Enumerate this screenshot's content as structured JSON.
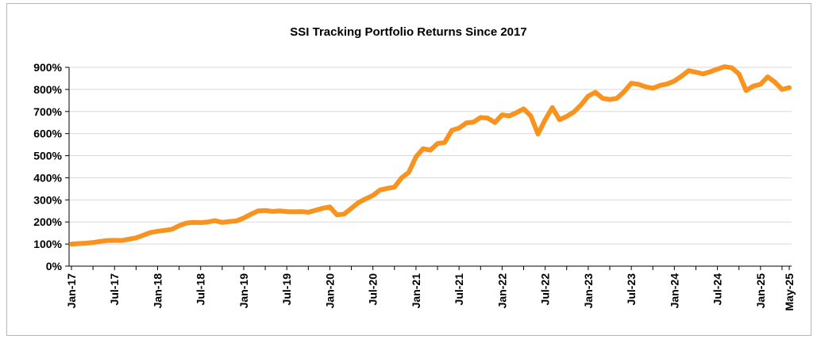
{
  "chart_data": {
    "type": "line",
    "title": "SSI Tracking Portfolio Returns Since 2017",
    "xlabel": "",
    "ylabel": "",
    "ylim": [
      0,
      900
    ],
    "y_ticks": [
      "0%",
      "100%",
      "200%",
      "300%",
      "400%",
      "500%",
      "600%",
      "700%",
      "800%",
      "900%"
    ],
    "x_tick_labels": [
      "Jan-17",
      "Jul-17",
      "Jan-18",
      "Jul-18",
      "Jan-19",
      "Jul-19",
      "Jan-20",
      "Jul-20",
      "Jan-21",
      "Jul-21",
      "Jan-22",
      "Jul-22",
      "Jan-23",
      "Jul-23",
      "Jan-24",
      "Jul-24",
      "Jan-25",
      "May-25"
    ],
    "grid": true,
    "line_color": "#F7931E",
    "series": [
      {
        "name": "SSI Tracking Portfolio",
        "x_start": "Jan-17",
        "frequency": "monthly",
        "values": [
          100,
          102,
          104,
          107,
          112,
          116,
          117,
          116,
          122,
          128,
          140,
          152,
          158,
          162,
          167,
          183,
          195,
          198,
          197,
          200,
          206,
          198,
          202,
          205,
          218,
          235,
          250,
          252,
          248,
          250,
          247,
          246,
          247,
          244,
          253,
          262,
          268,
          232,
          236,
          262,
          288,
          305,
          320,
          345,
          352,
          358,
          400,
          425,
          495,
          532,
          525,
          555,
          560,
          615,
          625,
          648,
          652,
          673,
          670,
          650,
          685,
          680,
          695,
          712,
          680,
          598,
          663,
          718,
          663,
          678,
          698,
          730,
          770,
          787,
          760,
          754,
          760,
          790,
          828,
          823,
          812,
          805,
          818,
          825,
          838,
          860,
          885,
          878,
          870,
          880,
          892,
          903,
          898,
          870,
          795,
          815,
          823,
          857,
          833,
          800,
          808
        ]
      }
    ]
  }
}
